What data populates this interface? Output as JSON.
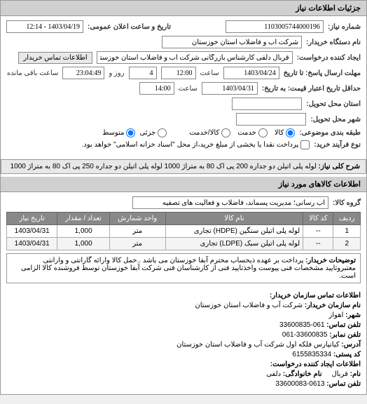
{
  "headers": {
    "details": "جزئیات اطلاعات نیاز",
    "goods_info": "اطلاعات کالاهای مورد نیاز"
  },
  "form": {
    "request_no_label": "شماره نیاز:",
    "request_no": "1103005744000196",
    "public_date_label": "تاریخ و ساعت اعلان عمومی:",
    "public_date": "1403/04/19 - 12:14",
    "buyer_org_label": "نام دستگاه خریدار:",
    "buyer_org": "شرکت آب و فاضلاب استان خوزستان",
    "requester_label": "ایجاد کننده درخواست:",
    "requester": "قربال دلفی کارشناس بازرگانی شرکت آب و فاضلاب استان خوزستان",
    "contact_btn": "اطلاعات تماس خریدار",
    "deadline_label": "مهلت ارسال پاسخ: تا تاریخ",
    "deadline_date": "1403/04/24",
    "time_label": "ساعت",
    "deadline_time": "12:00",
    "days_remain": "4",
    "days_remain_label": "روز و",
    "time_remain": "23:04:49",
    "time_remain_suffix": "ساعت باقی مانده",
    "validity_label": "حداقل تاریخ اعتبار قیمت: به تاریخ:",
    "validity_date": "1403/04/31",
    "validity_time": "14:00",
    "province_label": "استان محل تحویل:",
    "city_label": "شهر محل تحویل:",
    "grouping_label": "طبقه بندی موضوعی:",
    "grouping_options": {
      "goods": "کالا",
      "service": "خدمت",
      "both": "کالا/خدمت"
    },
    "scale_label": "جزئی",
    "scale_mid": "متوسط",
    "process_label": "نوع فرآیند خرید:",
    "process_note": "پرداخت نقدا یا بخشی از مبلغ خرید،از محل \"اسناد خزانه اسلامی\" خواهد بود."
  },
  "need_title": {
    "label": "شرح کلی نیاز:",
    "text": "لوله پلی اتیلن دو جداره 200 پی اک 80 به متراژ 1000 لوله پلی اتیلن دو جداره 250 پی اک 80 به متراژ 1000"
  },
  "goods_group": {
    "label": "گروه کالا:",
    "text": "آب رسانی؛ مدیریت پسماند، فاضلاب و فعالیت های تصفیه"
  },
  "table": {
    "cols": [
      "ردیف",
      "کد کالا",
      "نام کالا",
      "واحد شمارش",
      "تعداد / مقدار",
      "تاریخ نیاز"
    ],
    "rows": [
      {
        "idx": "1",
        "code": "--",
        "name": "لوله پلی اتیلن سنگین (HDPE) تجاری",
        "unit": "متر",
        "qty": "1,000",
        "date": "1403/04/31"
      },
      {
        "idx": "2",
        "code": "--",
        "name": "لوله پلی اتیلن سبک (LDPE) تجاری",
        "unit": "متر",
        "qty": "1,000",
        "date": "1403/04/31"
      }
    ]
  },
  "buyer_notes": {
    "label": "توضیحات خریدار:",
    "text": "پرداخت بر عهده ذیحساب محترم آبفا خوزستان می باشد ..حمل کالا وارائه گارانتی و وارانتی معتبروتایید مشخصات فنی پیوست واخذتایید فنی از کارشناسان فنی شرکت آبفا خوزستان توسط فروشنده کالا الزامی است."
  },
  "org_info": {
    "header": "اطلاعات تماس سازمان خریدار:",
    "org_label": "نام سازمان خریدار:",
    "org": "شرکت آب و فاضلاب استان خوزستان",
    "city_label": "شهر:",
    "city": "اهواز",
    "phone_label": "تلفن تماس:",
    "phone": "061-33600835",
    "fax_label": "تلفن نمابر:",
    "fax": "33600835-061",
    "address_label": "آدرس:",
    "address": "کیانپارس فلکه اول شرکت آب و فاضلاب استان خوزستان",
    "postal_label": "کد پستی:",
    "postal": "6155835334",
    "creator_header": "اطلاعات ایجاد کننده درخواست:",
    "name_label": "نام:",
    "name": "قربال",
    "family_label": "نام خانوادگی:",
    "family": "دلفی",
    "cphone_label": "تلفن تماس:",
    "cphone": "0613-33600083"
  }
}
